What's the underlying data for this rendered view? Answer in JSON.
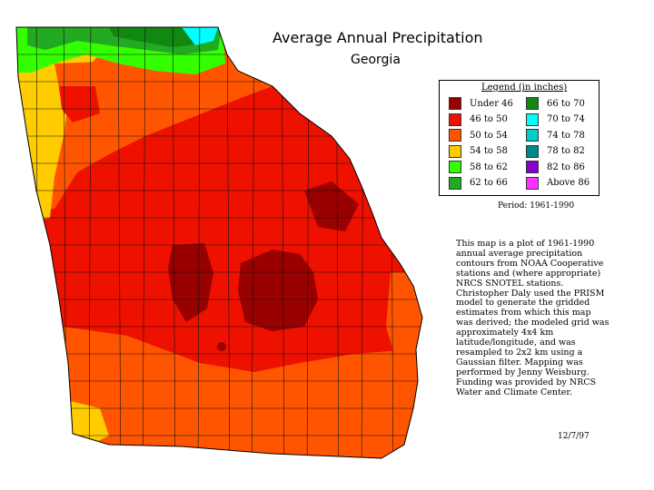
{
  "title": "Average Annual Precipitation",
  "subtitle": "Georgia",
  "legend": {
    "title": "Legend (in inches)",
    "items": [
      {
        "label": "Under 46",
        "color": "#990000"
      },
      {
        "label": "46 to 50",
        "color": "#ee1100"
      },
      {
        "label": "50 to 54",
        "color": "#ff5500"
      },
      {
        "label": "54 to 58",
        "color": "#ffcc00"
      },
      {
        "label": "58 to 62",
        "color": "#33ff00"
      },
      {
        "label": "62 to 66",
        "color": "#22aa22"
      },
      {
        "label": "66 to 70",
        "color": "#118811"
      },
      {
        "label": "70 to 74",
        "color": "#00ffff"
      },
      {
        "label": "74 to 78",
        "color": "#00cccc"
      },
      {
        "label": "78 to 82",
        "color": "#008888"
      },
      {
        "label": "82 to 86",
        "color": "#8800cc"
      },
      {
        "label": "Above 86",
        "color": "#ff33ff"
      }
    ]
  },
  "period": "Period: 1961-1990",
  "description": "This map is a plot of 1961-1990 annual average precipitation contours from NOAA Cooperative stations and (where appropriate) NRCS SNOTEL stations. Christopher Daly used the PRISM model to generate the gridded estimates from which this map was derived; the modeled grid was approximately 4x4 km latitude/longitude, and was resampled to 2x2 km using a Gaussian filter. Mapping was performed by Jenny Weisburg. Funding was provided by NRCS Water and Climate Center.",
  "date": "12/7/97"
}
